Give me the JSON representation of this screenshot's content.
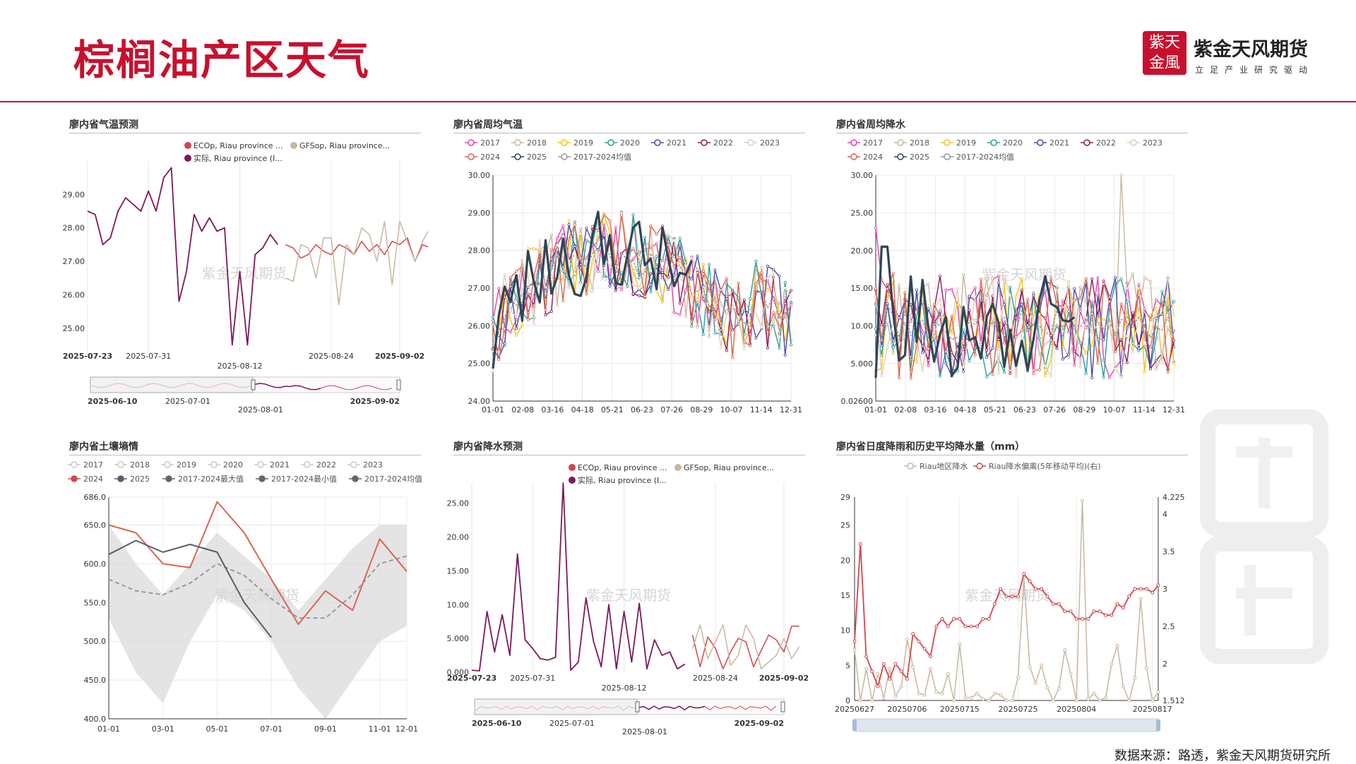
{
  "header": {
    "title": "棕榈油产区天气",
    "brand_name": "紫金天风期货",
    "brand_slogan": "立足产业研究驱动",
    "logo_chars": [
      "紫",
      "天",
      "金",
      "風"
    ],
    "accent": "#c8102e"
  },
  "footer": {
    "source": "数据来源：路透，紫金天风期货研究所"
  },
  "watermark": "紫金天风期货",
  "chart_data": [
    {
      "id": "temp_forecast",
      "type": "line",
      "title": "廖内省气温预测",
      "legend": [
        "ECOp, Riau province ...",
        "GFSop, Riau province...",
        "实际, Riau province (I..."
      ],
      "colors": [
        "#d4454b",
        "#c8b79f",
        "#7a1a5a"
      ],
      "ylim": [
        24.3,
        30
      ],
      "yticks": [
        25.0,
        26.0,
        27.0,
        28.0,
        29.0
      ],
      "ytick_labels": [
        "25.00",
        "26.00",
        "27.00",
        "28.00",
        "29.00"
      ],
      "n": 42,
      "xticks": [
        {
          "i": 0,
          "label": "2025-07-23",
          "bold": true
        },
        {
          "i": 8,
          "label": "2025-07-31",
          "bold": false
        },
        {
          "i": 20,
          "label": "2025-08-12",
          "bold": false,
          "low": true
        },
        {
          "i": 32,
          "label": "2025-08-24",
          "bold": false
        },
        {
          "i": 41,
          "label": "2025-09-02",
          "bold": true
        }
      ],
      "series": [
        {
          "name": "实际",
          "start": 0,
          "values": [
            28.5,
            28.4,
            27.5,
            27.7,
            28.5,
            28.9,
            28.7,
            28.5,
            29.1,
            28.5,
            29.5,
            29.8,
            25.8,
            26.7,
            28.4,
            27.9,
            28.3,
            27.9,
            28.0,
            24.5,
            26.7,
            24.5,
            27.2,
            27.4,
            27.8,
            27.5
          ]
        },
        {
          "name": "ECOp",
          "start": 26,
          "values": [
            27.5,
            27.4,
            27.1,
            27.2,
            27.5,
            27.3,
            27.2,
            27.5,
            27.4,
            27.2,
            27.6,
            27.3,
            27.5,
            27.2,
            27.6,
            27.5,
            27.7,
            27.0,
            27.5,
            27.4
          ]
        },
        {
          "name": "GFSop",
          "start": 26,
          "values": [
            26.5,
            26.4,
            27.5,
            27.4,
            26.5,
            27.7,
            27.7,
            25.7,
            27.5,
            27.2,
            28.0,
            27.8,
            27.0,
            28.2,
            26.3,
            28.2,
            27.6,
            27.0,
            27.6,
            28.0
          ]
        }
      ],
      "slider": {
        "start_label": "2025-06-10",
        "mid_label": "2025-07-01",
        "handle_label": "2025-08-01",
        "end_label": "2025-09-02"
      }
    },
    {
      "id": "weekly_temp",
      "type": "line",
      "title": "廖内省周均气温",
      "legend_row1": [
        "2017",
        "2018",
        "2019",
        "2020",
        "2021",
        "2022",
        "2023"
      ],
      "legend_row2": [
        "2024",
        "2025",
        "2017-2024均值"
      ],
      "colors": {
        "2017": "#e83fa8",
        "2018": "#c8b79f",
        "2019": "#f2c40e",
        "2020": "#2a9d9b",
        "2021": "#4a4aa8",
        "2022": "#8b1a5a",
        "2023": "#e2cdb4",
        "2024": "#d9664f",
        "2025": "#2f4556",
        "avg": "#999999"
      },
      "ylim": [
        24,
        30
      ],
      "yticks": [
        24.0,
        25.0,
        26.0,
        27.0,
        28.0,
        29.0,
        30.0
      ],
      "ytick_labels": [
        "24.00",
        "25.00",
        "26.00",
        "27.00",
        "28.00",
        "29.00",
        "30.00"
      ],
      "xticks": [
        "01-01",
        "02-08",
        "03-16",
        "04-18",
        "05-21",
        "06-23",
        "07-26",
        "08-29",
        "10-07",
        "11-14",
        "12-31"
      ]
    },
    {
      "id": "weekly_rain",
      "type": "line",
      "title": "廖内省周均降水",
      "legend_row1": [
        "2017",
        "2018",
        "2019",
        "2020",
        "2021",
        "2022",
        "2023"
      ],
      "legend_row2": [
        "2024",
        "2025",
        "2017-2024均值"
      ],
      "ylim": [
        0.026,
        30
      ],
      "yticks": [
        0.026,
        5.0,
        10.0,
        15.0,
        20.0,
        25.0,
        30.0
      ],
      "ytick_labels": [
        "0.02600",
        "5.000",
        "10.00",
        "15.00",
        "20.00",
        "25.00",
        "30.00"
      ],
      "xticks": [
        "01-01",
        "02-08",
        "03-16",
        "04-18",
        "05-21",
        "06-23",
        "07-26",
        "08-29",
        "10-07",
        "11-14",
        "12-31"
      ]
    },
    {
      "id": "soil_moisture",
      "type": "line",
      "title": "廖内省土壤墒情",
      "legend_row1": [
        "2017",
        "2018",
        "2019",
        "2020",
        "2021",
        "2022",
        "2023"
      ],
      "legend_row2": [
        "2024",
        "2025",
        "2017-2024最大值",
        "2017-2024最小值",
        "2017-2024均值"
      ],
      "ylim": [
        400,
        686
      ],
      "yticks": [
        400,
        450,
        500,
        550,
        600,
        650,
        686
      ],
      "ytick_labels": [
        "400.0",
        "450.0",
        "500.0",
        "550.0",
        "600.0",
        "650.0",
        "686.0"
      ],
      "xticks": [
        {
          "m": 0,
          "label": "01-01"
        },
        {
          "m": 2,
          "label": "03-01"
        },
        {
          "m": 4,
          "label": "05-01"
        },
        {
          "m": 6,
          "label": "07-01"
        },
        {
          "m": 8,
          "label": "09-01"
        },
        {
          "m": 10,
          "label": "11-01"
        },
        {
          "m": 11,
          "label": "12-01"
        }
      ],
      "months": [
        0,
        1,
        2,
        3,
        4,
        5,
        6,
        7,
        8,
        9,
        10,
        11
      ],
      "max": [
        650,
        600,
        560,
        600,
        640,
        610,
        580,
        540,
        580,
        620,
        650,
        650
      ],
      "min": [
        530,
        460,
        420,
        500,
        560,
        540,
        500,
        440,
        400,
        450,
        500,
        520
      ],
      "avg": [
        580,
        565,
        560,
        575,
        600,
        585,
        555,
        530,
        530,
        560,
        600,
        610
      ],
      "s2024": [
        650,
        640,
        600,
        595,
        680,
        640,
        580,
        522,
        565,
        540,
        632,
        590
      ],
      "s2025": [
        612,
        630,
        615,
        625,
        615,
        550,
        505
      ]
    },
    {
      "id": "rain_forecast",
      "type": "line",
      "title": "廖内省降水预测",
      "legend": [
        "ECOp, Riau province ...",
        "GFSop, Riau province...",
        "实际, Riau province (I..."
      ],
      "colors": [
        "#d4454b",
        "#c8b79f",
        "#7a1a5a"
      ],
      "ylim": [
        0,
        28
      ],
      "yticks": [
        0,
        5,
        10,
        15,
        20,
        25
      ],
      "ytick_labels": [
        "0.000",
        "5.000",
        "10.00",
        "15.00",
        "20.00",
        "25.00"
      ],
      "n": 42,
      "xticks": [
        {
          "i": 0,
          "label": "2025-07-23",
          "bold": true
        },
        {
          "i": 8,
          "label": "2025-07-31",
          "bold": false
        },
        {
          "i": 20,
          "label": "2025-08-12",
          "bold": false,
          "low": true
        },
        {
          "i": 32,
          "label": "2025-08-24",
          "bold": false
        },
        {
          "i": 41,
          "label": "2025-09-02",
          "bold": true
        }
      ],
      "series": [
        {
          "name": "实际",
          "start": 0,
          "values": [
            0.3,
            0.2,
            9.0,
            3.0,
            8.5,
            2.5,
            17.5,
            4.8,
            3.5,
            2.0,
            1.8,
            2.2,
            28,
            0.3,
            1.5,
            11,
            4.5,
            0.8,
            10.0,
            0.5,
            9.0,
            1.5,
            10.2,
            0.5,
            4.8,
            2.5,
            3.0,
            0.5,
            1.2
          ]
        },
        {
          "name": "ECOp",
          "start": 29,
          "values": [
            5.5,
            0.8,
            5.2,
            3.5,
            0.5,
            3.0,
            5.0,
            4.5,
            0.8,
            3.2,
            5.5,
            4.8,
            3.0,
            6.8,
            6.8
          ]
        },
        {
          "name": "GFSop",
          "start": 29,
          "values": [
            3.5,
            7.0,
            2.0,
            4.5,
            7.0,
            1.0,
            2.5,
            7.0,
            5.0,
            0.5,
            1.5,
            2.5,
            5.0,
            2.0,
            3.8
          ]
        }
      ],
      "slider": {
        "start_label": "2025-06-10",
        "mid_label": "2025-07-01",
        "handle_label": "2025-08-01",
        "end_label": "2025-09-02"
      }
    },
    {
      "id": "daily_rain",
      "type": "line",
      "title": "廖内省日度降雨和历史平均降水量（mm）",
      "legend": [
        "Riau地区降水",
        "Riau降水偏离(5年移动平均)(右)"
      ],
      "colors": [
        "#c8b79f",
        "#d4454b"
      ],
      "ylim_left": [
        0,
        29
      ],
      "ylim_right": [
        1.512,
        4.225
      ],
      "yticks_left": [
        0,
        5,
        10,
        15,
        20,
        25,
        29
      ],
      "yticks_right": [
        1.512,
        2,
        2.5,
        3,
        3.5,
        4,
        4.225
      ],
      "ytick_right_labels": [
        "1.512",
        "2",
        "2.5",
        "3",
        "3.5",
        "4",
        "4.225"
      ],
      "xticks": [
        {
          "i": 0,
          "label": "20250627"
        },
        {
          "i": 9,
          "label": "20250706"
        },
        {
          "i": 18,
          "label": "20250715"
        },
        {
          "i": 28,
          "label": "20250725"
        },
        {
          "i": 38,
          "label": "20250804"
        },
        {
          "i": 51,
          "label": "20250817"
        }
      ],
      "n": 53,
      "rain": [
        7.2,
        0,
        4.5,
        0,
        3.8,
        0.3,
        4.5,
        0.6,
        2.0,
        8.7,
        4.8,
        1.0,
        0.8,
        4.5,
        1.2,
        1.0,
        3.8,
        0.0,
        8.0,
        0.4,
        0.4,
        1.0,
        0.2,
        0,
        1.0,
        0.8,
        0,
        0,
        3.3,
        17.5,
        4.8,
        2.5,
        5.0,
        1.8,
        0,
        1.7,
        7.2,
        3.8,
        0,
        28.5,
        0.2,
        1.0,
        0,
        0.4,
        5.2,
        7.8,
        2.0,
        0,
        3.2,
        14.5,
        4.6,
        0,
        1.2
      ],
      "deviation": [
        2.3,
        3.6,
        2.1,
        1.9,
        1.7,
        2.0,
        1.8,
        2.0,
        1.9,
        1.8,
        2.4,
        2.3,
        2.2,
        2.1,
        2.5,
        2.6,
        2.5,
        2.6,
        2.6,
        2.5,
        2.5,
        2.5,
        2.6,
        2.6,
        2.8,
        3.0,
        2.9,
        2.9,
        2.9,
        3.2,
        3.1,
        3.0,
        3.0,
        2.9,
        2.8,
        2.8,
        2.7,
        2.7,
        2.6,
        2.6,
        2.6,
        2.7,
        2.7,
        2.65,
        2.65,
        2.8,
        2.75,
        2.9,
        3.0,
        3.0,
        3.0,
        2.95,
        3.05
      ]
    }
  ]
}
